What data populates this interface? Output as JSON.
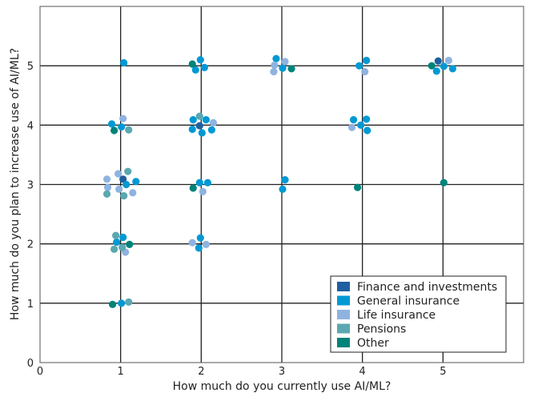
{
  "chart_data": {
    "type": "scatter",
    "xlabel": "How much do you currently use AI/ML?",
    "ylabel": "How much do you plan to increase use of AI/ML?",
    "xlim": [
      0,
      6
    ],
    "ylim": [
      0,
      6
    ],
    "xticks": [
      "0",
      "1",
      "2",
      "3",
      "4",
      "5"
    ],
    "yticks": [
      "0",
      "1",
      "2",
      "3",
      "4",
      "5"
    ],
    "grid": true,
    "legend_position": "bottom-right",
    "series": [
      {
        "name": "Finance and investments",
        "color": "#1f5fa0",
        "x": [
          1.98,
          1.03,
          4.94
        ],
        "y": [
          3.99,
          3.09,
          5.08
        ]
      },
      {
        "name": "General insurance",
        "color": "#0099d4",
        "x": [
          1.04,
          0.89,
          1.01,
          1.9,
          2.06,
          1.89,
          2.13,
          2.01,
          1.19,
          1.07,
          1.98,
          2.08,
          1.03,
          0.95,
          1.99,
          1.97,
          1.01,
          1.99,
          2.04,
          1.93,
          2.93,
          3.01,
          4.05,
          3.96,
          5.01,
          5.12,
          4.92,
          3.89,
          4.05,
          3.98,
          4.06,
          3.04,
          3.01
        ],
        "y": [
          5.05,
          4.02,
          3.97,
          4.09,
          4.09,
          3.93,
          3.92,
          3.87,
          3.05,
          3.0,
          3.03,
          3.03,
          2.11,
          2.03,
          2.1,
          1.93,
          1.0,
          5.1,
          4.97,
          4.93,
          5.12,
          4.96,
          5.09,
          5.0,
          4.99,
          4.95,
          4.91,
          4.09,
          4.1,
          4.0,
          3.91,
          3.08,
          2.92
        ]
      },
      {
        "name": "Life insurance",
        "color": "#8fb3e0",
        "x": [
          1.03,
          2.15,
          0.97,
          0.83,
          0.84,
          0.98,
          1.15,
          2.02,
          1.06,
          1.89,
          2.06,
          3.04,
          2.91,
          2.9,
          4.03,
          5.07,
          3.87
        ],
        "y": [
          4.11,
          4.04,
          3.18,
          3.09,
          2.95,
          2.92,
          2.86,
          2.88,
          1.86,
          2.02,
          1.99,
          5.07,
          5.01,
          4.9,
          4.9,
          5.09,
          3.96
        ]
      },
      {
        "name": "Pensions",
        "color": "#5ba8b0",
        "x": [
          1.1,
          1.98,
          1.09,
          0.83,
          1.04,
          0.94,
          0.92,
          1.02,
          1.1
        ],
        "y": [
          3.92,
          4.15,
          3.22,
          2.84,
          2.81,
          2.14,
          1.91,
          1.94,
          1.02
        ]
      },
      {
        "name": "Other",
        "color": "#00837a",
        "x": [
          0.92,
          1.9,
          1.11,
          0.9,
          1.89,
          3.12,
          4.86,
          3.94,
          5.01
        ],
        "y": [
          3.91,
          2.94,
          1.99,
          0.98,
          5.03,
          4.95,
          5.0,
          2.95,
          3.03
        ]
      }
    ]
  }
}
